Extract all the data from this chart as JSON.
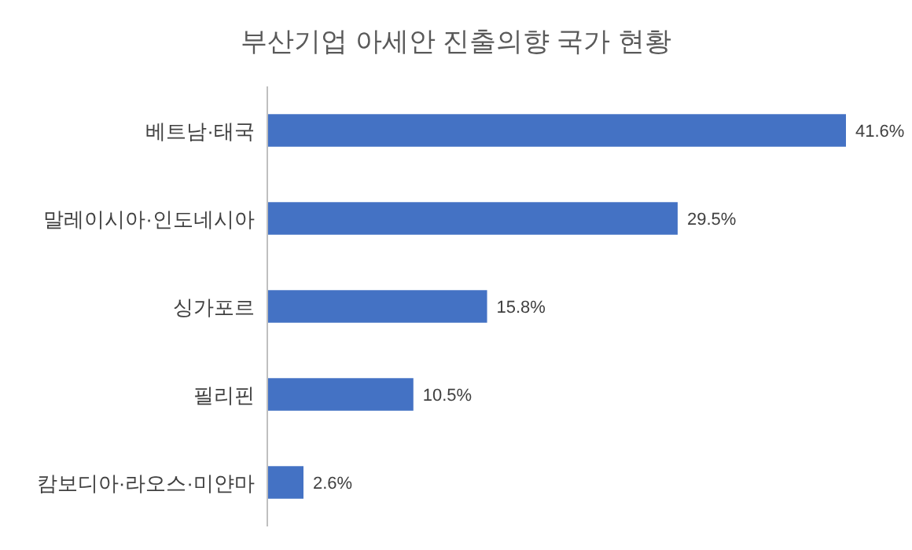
{
  "chart_data": {
    "type": "bar",
    "orientation": "horizontal",
    "title": "부산기업 아세안 진출의향 국가 현황",
    "categories": [
      "베트남·태국",
      "말레이시아·인도네시아",
      "싱가포르",
      "필리핀",
      "캄보디아·라오스·미얀마"
    ],
    "values": [
      41.6,
      29.5,
      15.8,
      10.5,
      2.6
    ],
    "value_labels": [
      "41.6%",
      "29.5%",
      "15.8%",
      "10.5%",
      "2.6%"
    ],
    "color": "#4472c4"
  }
}
